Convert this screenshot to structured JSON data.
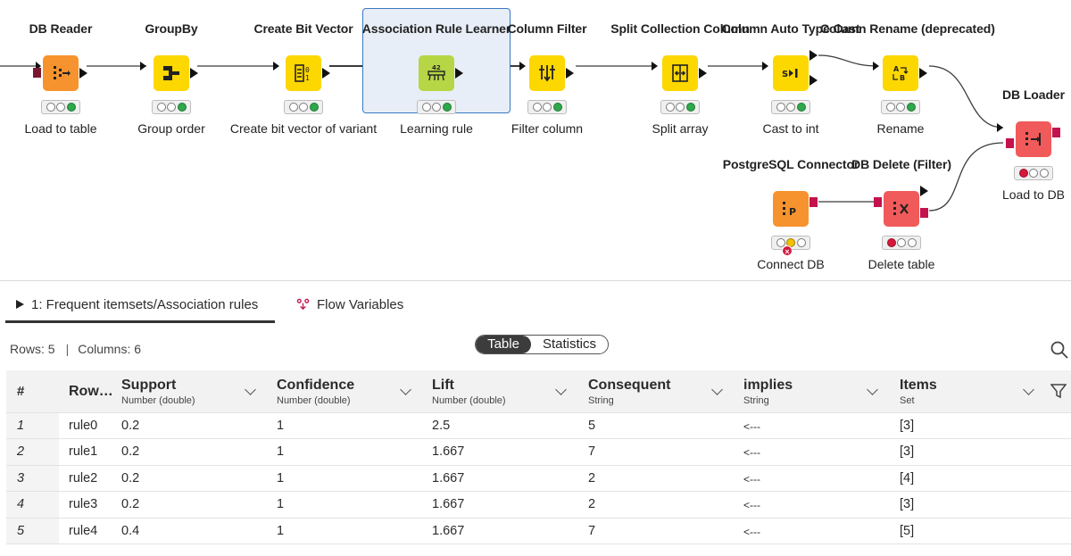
{
  "workflow": {
    "nodes": [
      {
        "title": "DB Reader",
        "label": "Load to table",
        "color": "#f7932e",
        "status": [
          "off",
          "off",
          "green"
        ]
      },
      {
        "title": "GroupBy",
        "label": "Group order",
        "color": "#fdd700",
        "status": [
          "off",
          "off",
          "green"
        ]
      },
      {
        "title": "Create Bit Vector",
        "label": "Create bit vector of variant",
        "color": "#fdd700",
        "status": [
          "off",
          "off",
          "green"
        ]
      },
      {
        "title": "Association Rule Learner",
        "label": "Learning rule",
        "color": "#b6d645",
        "status": [
          "off",
          "off",
          "green"
        ]
      },
      {
        "title": "Column Filter",
        "label": "Filter column",
        "color": "#fdd700",
        "status": [
          "off",
          "off",
          "green"
        ]
      },
      {
        "title": "Split Collection Column",
        "label": "Split array",
        "color": "#fdd700",
        "status": [
          "off",
          "off",
          "green"
        ]
      },
      {
        "title": "Column Auto Type Cast",
        "label": "Cast to int",
        "color": "#fdd700",
        "status": [
          "off",
          "off",
          "green"
        ]
      },
      {
        "title": "Column Rename (deprecated)",
        "label": "Rename",
        "color": "#fdd700",
        "status": [
          "off",
          "off",
          "green"
        ]
      },
      {
        "title": "DB Loader",
        "label": "Load to DB",
        "color": "#f15a5a",
        "status": [
          "red",
          "off",
          "off"
        ]
      },
      {
        "title": "PostgreSQL Connector",
        "label": "Connect DB",
        "color": "#f7932e",
        "status": [
          "off",
          "yellow",
          "off"
        ]
      },
      {
        "title": "DB Delete (Filter)",
        "label": "Delete table",
        "color": "#f15a5a",
        "status": [
          "red",
          "off",
          "off"
        ]
      }
    ],
    "icons": [
      "db-reader-icon",
      "groupby-icon",
      "bit-vector-icon",
      "association-rule-icon",
      "column-filter-icon",
      "split-collection-icon",
      "type-cast-icon",
      "rename-icon",
      "db-loader-icon",
      "postgresql-icon",
      "db-delete-icon"
    ],
    "error_badge": "×"
  },
  "panel": {
    "tabs": [
      {
        "label": "1: Frequent itemsets/Association rules",
        "active": true
      },
      {
        "label": "Flow Variables",
        "active": false
      }
    ],
    "rows_text": "Rows: 5",
    "sep": "|",
    "cols_text": "Columns: 6",
    "view_toggle": {
      "options": [
        "Table",
        "Statistics"
      ],
      "selected": "Table"
    }
  },
  "table": {
    "index_header": "#",
    "rowid_header": "Row…",
    "columns": [
      {
        "name": "Support",
        "type": "Number (double)"
      },
      {
        "name": "Confidence",
        "type": "Number (double)"
      },
      {
        "name": "Lift",
        "type": "Number (double)"
      },
      {
        "name": "Consequent",
        "type": "String"
      },
      {
        "name": "implies",
        "type": "String"
      },
      {
        "name": "Items",
        "type": "Set"
      }
    ],
    "rows": [
      {
        "idx": "1",
        "id": "rule0",
        "cells": [
          "0.2",
          "1",
          "2.5",
          "5",
          "<---",
          "[3]"
        ]
      },
      {
        "idx": "2",
        "id": "rule1",
        "cells": [
          "0.2",
          "1",
          "1.667",
          "7",
          "<---",
          "[3]"
        ]
      },
      {
        "idx": "3",
        "id": "rule2",
        "cells": [
          "0.2",
          "1",
          "1.667",
          "2",
          "<---",
          "[4]"
        ]
      },
      {
        "idx": "4",
        "id": "rule3",
        "cells": [
          "0.2",
          "1",
          "1.667",
          "2",
          "<---",
          "[3]"
        ]
      },
      {
        "idx": "5",
        "id": "rule4",
        "cells": [
          "0.4",
          "1",
          "1.667",
          "7",
          "<---",
          "[5]"
        ]
      }
    ]
  }
}
